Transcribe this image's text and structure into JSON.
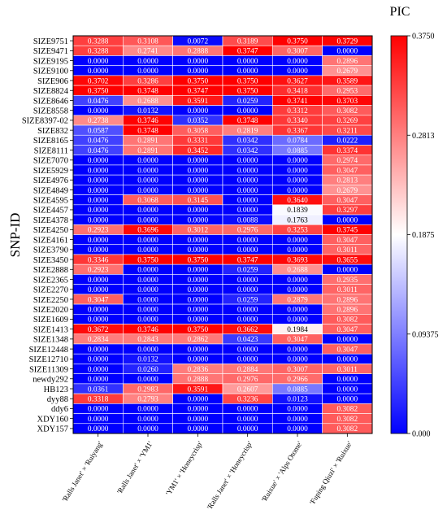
{
  "chart_data": {
    "type": "heatmap",
    "title": "",
    "ylabel": "SNP-ID",
    "xlabel": "",
    "colorbar": {
      "title": "PIC",
      "ticks": [
        "0.3750",
        "0.2813",
        "0.1875",
        "0.09375",
        "0.000"
      ],
      "range": [
        0,
        0.375
      ],
      "low_color": "#0000ff",
      "mid_color": "#ffffff",
      "high_color": "#ff0000"
    },
    "columns": [
      "'Ralls Janet' × 'Ruiyang'",
      "'Ralls Janet' × 'YM1'",
      "'YM1' × 'Honeycrisp'",
      "'Ralls Janet' × 'Honeycrisp'",
      "'Ruixue' × 'Alps Otome'",
      "'Fuping Qiuzi' × 'Ruixue'"
    ],
    "rows": [
      "SIZE9751",
      "SIZE9471",
      "SIZE9195",
      "SIZE9100",
      "SIZE906",
      "SIZE8824",
      "SIZE8646",
      "SIZE8558",
      "SIZE8397-02",
      "SIZE832",
      "SIZE8165",
      "SIZE8111",
      "SIZE7070",
      "SIZE5929",
      "SIZE4976",
      "SIZE4849",
      "SIZE4595",
      "SIZE4457",
      "SIZE4378",
      "SIZE4250",
      "SIZE4161",
      "SIZE3790",
      "SIZE3450",
      "SIZE2888",
      "SIZE2365",
      "SIZE2270",
      "SIZE2250",
      "SIZE2020",
      "SIZE1609",
      "SIZE1413",
      "SIZE1348",
      "SIZE12448",
      "SIZE12710",
      "SIZE11309",
      "newdy292",
      "HB123",
      "dyy88",
      "ddy6",
      "XDY160",
      "XDY157"
    ],
    "values": [
      [
        "0.3288",
        "0.3108",
        "0.0072",
        "0.3189",
        "0.3750",
        "0.3729"
      ],
      [
        "0.3288",
        "0.2741",
        "0.2888",
        "0.3747",
        "0.3007",
        "0.0000"
      ],
      [
        "0.0000",
        "0.0000",
        "0.0000",
        "0.0000",
        "0.0000",
        "0.2896"
      ],
      [
        "0.0000",
        "0.0000",
        "0.0000",
        "0.0000",
        "0.0000",
        "0.2679"
      ],
      [
        "0.3702",
        "0.3286",
        "0.3750",
        "0.3750",
        "0.3627",
        "0.3589"
      ],
      [
        "0.3750",
        "0.3748",
        "0.3747",
        "0.3750",
        "0.3418",
        "0.2953"
      ],
      [
        "0.0476",
        "0.2688",
        "0.3591",
        "0.0259",
        "0.3741",
        "0.3703"
      ],
      [
        "0.0000",
        "0.0132",
        "0.0000",
        "0.0000",
        "0.3312",
        "0.3082"
      ],
      [
        "0.2738",
        "0.3746",
        "0.0352",
        "0.3748",
        "0.3340",
        "0.3269"
      ],
      [
        "0.0587",
        "0.3748",
        "0.3058",
        "0.2819",
        "0.3367",
        "0.3211"
      ],
      [
        "0.0476",
        "0.2891",
        "0.3331",
        "0.0342",
        "0.0784",
        "0.0222"
      ],
      [
        "0.0476",
        "0.2891",
        "0.3452",
        "0.0342",
        "0.0885",
        "0.3374"
      ],
      [
        "0.0000",
        "0.0000",
        "0.0000",
        "0.0000",
        "0.0000",
        "0.2974"
      ],
      [
        "0.0000",
        "0.0000",
        "0.0000",
        "0.0000",
        "0.0000",
        "0.3047"
      ],
      [
        "0.0000",
        "0.0000",
        "0.0000",
        "0.0000",
        "0.0000",
        "0.2813"
      ],
      [
        "0.0000",
        "0.0000",
        "0.0000",
        "0.0000",
        "0.0000",
        "0.2679"
      ],
      [
        "0.0000",
        "0.3068",
        "0.3145",
        "0.0000",
        "0.3640",
        "0.3047"
      ],
      [
        "0.0000",
        "0.0000",
        "0.0000",
        "0.0000",
        "0.1839",
        "0.3297"
      ],
      [
        "0.0000",
        "0.0000",
        "0.0000",
        "0.0088",
        "0.1763",
        "0.0000"
      ],
      [
        "0.2923",
        "0.3696",
        "0.3012",
        "0.2976",
        "0.3253",
        "0.3745"
      ],
      [
        "0.0000",
        "0.0000",
        "0.0000",
        "0.0000",
        "0.0000",
        "0.3047"
      ],
      [
        "0.0000",
        "0.0000",
        "0.0000",
        "0.0000",
        "0.0000",
        "0.3011"
      ],
      [
        "0.3346",
        "0.3750",
        "0.3750",
        "0.3747",
        "0.3693",
        "0.3655"
      ],
      [
        "0.2923",
        "0.0000",
        "0.0000",
        "0.0259",
        "0.2688",
        "0.0000"
      ],
      [
        "0.0000",
        "0.0000",
        "0.0000",
        "0.0000",
        "0.0000",
        "0.2935"
      ],
      [
        "0.0000",
        "0.0000",
        "0.0000",
        "0.0000",
        "0.0000",
        "0.3011"
      ],
      [
        "0.3047",
        "0.0000",
        "0.0000",
        "0.0259",
        "0.2879",
        "0.2896"
      ],
      [
        "0.0000",
        "0.0000",
        "0.0000",
        "0.0000",
        "0.0000",
        "0.2896"
      ],
      [
        "0.0000",
        "0.0000",
        "0.0000",
        "0.0000",
        "0.0000",
        "0.3082"
      ],
      [
        "0.3672",
        "0.3746",
        "0.3750",
        "0.3662",
        "0.1984",
        "0.3047"
      ],
      [
        "0.2834",
        "0.2843",
        "0.2862",
        "0.0423",
        "0.3047",
        "0.0000"
      ],
      [
        "0.0000",
        "0.0000",
        "0.0000",
        "0.0000",
        "0.0000",
        "0.3047"
      ],
      [
        "0.0000",
        "0.0132",
        "0.0000",
        "0.0000",
        "0.0000",
        "0.0000"
      ],
      [
        "0.0000",
        "0.0260",
        "0.2836",
        "0.2884",
        "0.3007",
        "0.3011"
      ],
      [
        "0.0000",
        "0.0000",
        "0.2888",
        "0.2976",
        "0.2966",
        "0.0000"
      ],
      [
        "0.0361",
        "0.2983",
        "0.3591",
        "0.2607",
        "0.0885",
        "0.0000"
      ],
      [
        "0.3318",
        "0.2793",
        "0.0000",
        "0.3236",
        "0.0123",
        "0.0000"
      ],
      [
        "0.0000",
        "0.0000",
        "0.0000",
        "0.0000",
        "0.0000",
        "0.3082"
      ],
      [
        "0.0000",
        "0.0000",
        "0.0000",
        "0.0000",
        "0.0000",
        "0.3082"
      ],
      [
        "0.0000",
        "0.0000",
        "0.0000",
        "0.0000",
        "0.0000",
        "0.3082"
      ]
    ]
  }
}
